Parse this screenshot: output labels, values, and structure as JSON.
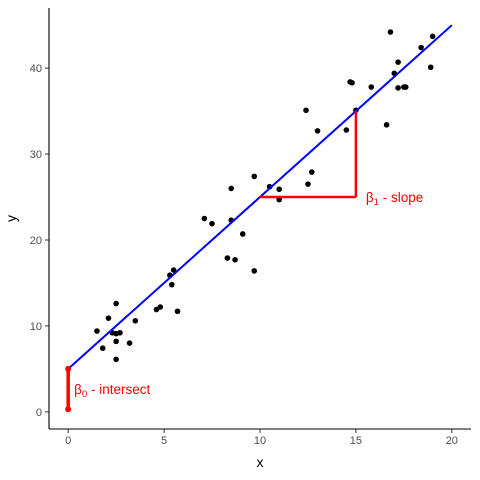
{
  "chart_data": {
    "type": "scatter",
    "title": "",
    "xlabel": "x",
    "ylabel": "y",
    "xlim": [
      -1,
      21
    ],
    "ylim": [
      -2,
      47
    ],
    "grid": false,
    "x_ticks": [
      0,
      5,
      10,
      15,
      20
    ],
    "y_ticks": [
      0,
      10,
      20,
      30,
      40
    ],
    "points": [
      {
        "x": 1.5,
        "y": 9.4
      },
      {
        "x": 1.8,
        "y": 7.4
      },
      {
        "x": 2.1,
        "y": 10.9
      },
      {
        "x": 2.3,
        "y": 9.2
      },
      {
        "x": 2.5,
        "y": 12.6
      },
      {
        "x": 2.5,
        "y": 9.1
      },
      {
        "x": 2.5,
        "y": 8.2
      },
      {
        "x": 2.5,
        "y": 6.1
      },
      {
        "x": 2.7,
        "y": 9.2
      },
      {
        "x": 3.2,
        "y": 8.0
      },
      {
        "x": 3.5,
        "y": 10.6
      },
      {
        "x": 4.6,
        "y": 11.9
      },
      {
        "x": 4.8,
        "y": 12.2
      },
      {
        "x": 5.3,
        "y": 15.9
      },
      {
        "x": 5.4,
        "y": 14.8
      },
      {
        "x": 5.5,
        "y": 16.5
      },
      {
        "x": 5.7,
        "y": 11.7
      },
      {
        "x": 7.1,
        "y": 22.5
      },
      {
        "x": 7.5,
        "y": 21.9
      },
      {
        "x": 8.3,
        "y": 17.9
      },
      {
        "x": 8.5,
        "y": 26.0
      },
      {
        "x": 8.5,
        "y": 22.3
      },
      {
        "x": 8.7,
        "y": 17.7
      },
      {
        "x": 9.1,
        "y": 20.7
      },
      {
        "x": 9.7,
        "y": 27.4
      },
      {
        "x": 9.7,
        "y": 16.4
      },
      {
        "x": 10.5,
        "y": 26.2
      },
      {
        "x": 11.0,
        "y": 25.9
      },
      {
        "x": 11.0,
        "y": 24.7
      },
      {
        "x": 12.4,
        "y": 35.1
      },
      {
        "x": 12.5,
        "y": 26.5
      },
      {
        "x": 12.7,
        "y": 27.9
      },
      {
        "x": 13.0,
        "y": 32.7
      },
      {
        "x": 14.5,
        "y": 32.8
      },
      {
        "x": 14.7,
        "y": 38.4
      },
      {
        "x": 14.8,
        "y": 38.3
      },
      {
        "x": 15.0,
        "y": 35.1
      },
      {
        "x": 15.8,
        "y": 37.8
      },
      {
        "x": 16.6,
        "y": 33.4
      },
      {
        "x": 16.8,
        "y": 44.2
      },
      {
        "x": 17.0,
        "y": 39.4
      },
      {
        "x": 17.2,
        "y": 40.7
      },
      {
        "x": 17.2,
        "y": 37.7
      },
      {
        "x": 17.5,
        "y": 37.8
      },
      {
        "x": 17.6,
        "y": 37.8
      },
      {
        "x": 18.4,
        "y": 42.4
      },
      {
        "x": 18.9,
        "y": 40.1
      },
      {
        "x": 19.0,
        "y": 43.7
      }
    ],
    "regression_line": {
      "color": "#0000ff",
      "intercept": 5.0,
      "slope": 2.0,
      "x_range": [
        0,
        20
      ]
    },
    "annotations": [
      {
        "type": "intercept",
        "color": "#ff0000",
        "x": 0,
        "y_from": 0.3,
        "y_to": 5.0,
        "symbol": "β",
        "subscript": "0",
        "text": " - intersect"
      },
      {
        "type": "slope",
        "color": "#ff0000",
        "x_from": 10,
        "x_to": 15,
        "y_from": 25,
        "y_to": 35,
        "symbol": "β",
        "subscript": "1",
        "text": " - slope"
      }
    ]
  }
}
